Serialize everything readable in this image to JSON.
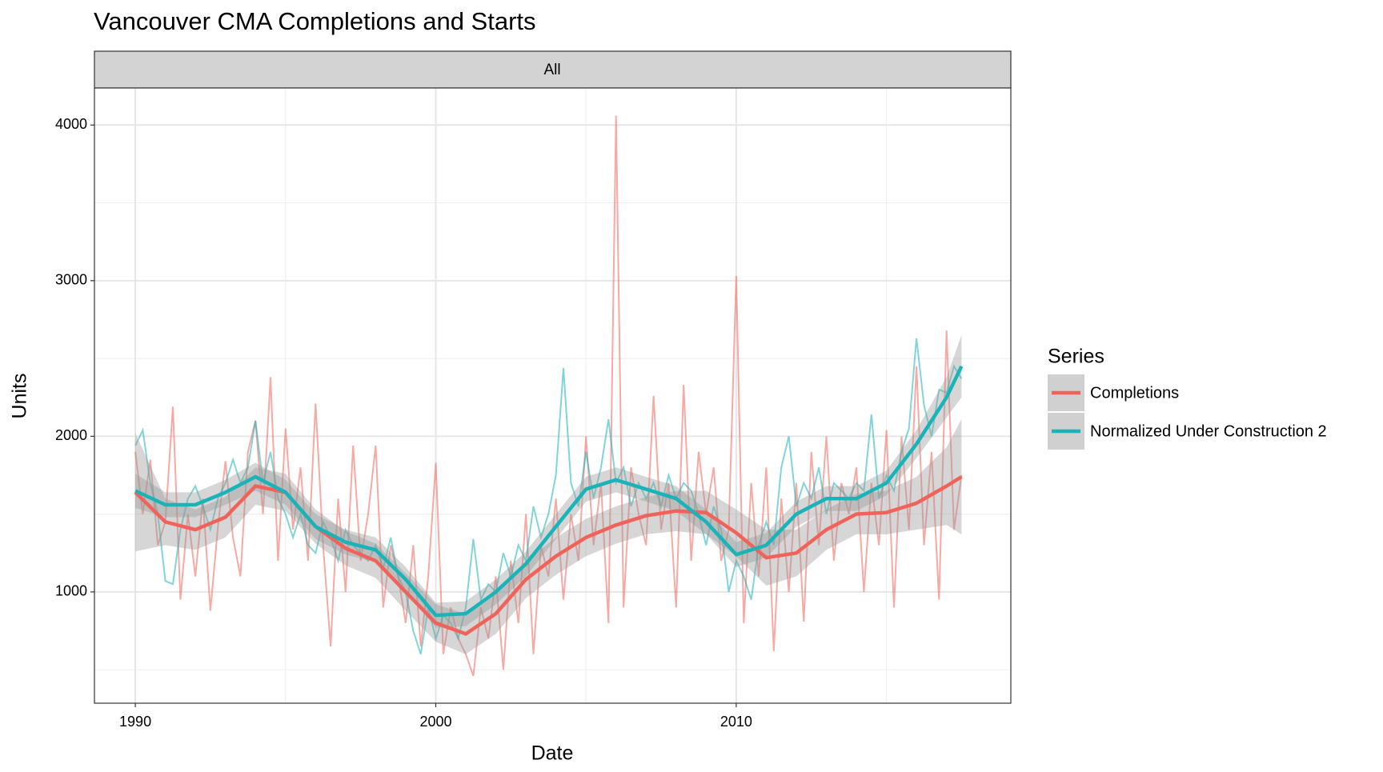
{
  "chart_data": {
    "type": "line",
    "title": "Vancouver CMA Completions and Starts",
    "facet": "All",
    "x_label": "Date",
    "y_label": "Units",
    "legend_title": "Series",
    "legend": "right",
    "grid": true,
    "xlim": [
      1988.64,
      2019.14
    ],
    "ylim": [
      285,
      4238
    ],
    "xticks": [
      1990,
      2000,
      2010
    ],
    "xminor": [
      1995,
      2005,
      2015
    ],
    "yticks": [
      1000,
      2000,
      3000,
      4000
    ],
    "yminor": [
      500,
      1500,
      2500,
      3500
    ],
    "x": [
      1990,
      1990.25,
      1990.5,
      1990.75,
      1991,
      1991.25,
      1991.5,
      1991.75,
      1992,
      1992.25,
      1992.5,
      1992.75,
      1993,
      1993.25,
      1993.5,
      1993.75,
      1994,
      1994.25,
      1994.5,
      1994.75,
      1995,
      1995.25,
      1995.5,
      1995.75,
      1996,
      1996.25,
      1996.5,
      1996.75,
      1997,
      1997.25,
      1997.5,
      1997.75,
      1998,
      1998.25,
      1998.5,
      1998.75,
      1999,
      1999.25,
      1999.5,
      1999.75,
      2000,
      2000.25,
      2000.5,
      2000.75,
      2001,
      2001.25,
      2001.5,
      2001.75,
      2002,
      2002.25,
      2002.5,
      2002.75,
      2003,
      2003.25,
      2003.5,
      2003.75,
      2004,
      2004.25,
      2004.5,
      2004.75,
      2005,
      2005.25,
      2005.5,
      2005.75,
      2006,
      2006.25,
      2006.5,
      2006.75,
      2007,
      2007.25,
      2007.5,
      2007.75,
      2008,
      2008.25,
      2008.5,
      2008.75,
      2009,
      2009.25,
      2009.5,
      2009.75,
      2010,
      2010.25,
      2010.5,
      2010.75,
      2011,
      2011.25,
      2011.5,
      2011.75,
      2012,
      2012.25,
      2012.5,
      2012.75,
      2013,
      2013.25,
      2013.5,
      2013.75,
      2014,
      2014.25,
      2014.5,
      2014.75,
      2015,
      2015.25,
      2015.5,
      2015.75,
      2016,
      2016.25,
      2016.5,
      2016.75,
      2017,
      2017.25,
      2017.5
    ],
    "smooth_x": [
      1990,
      1991,
      1992,
      1993,
      1994,
      1995,
      1996,
      1997,
      1998,
      1999,
      2000,
      2001,
      2002,
      2003,
      2004,
      2005,
      2006,
      2007,
      2008,
      2009,
      2010,
      2011,
      2012,
      2013,
      2014,
      2015,
      2016,
      2017,
      2017.5
    ],
    "series": [
      {
        "name": "Completions",
        "color": "#f0635a",
        "values": [
          1900,
          1500,
          1850,
          1300,
          1450,
          2190,
          950,
          1500,
          1100,
          1600,
          880,
          1420,
          1840,
          1350,
          1100,
          1900,
          2100,
          1500,
          2380,
          1200,
          2050,
          1400,
          1800,
          1200,
          2210,
          1300,
          650,
          1600,
          1000,
          1940,
          1200,
          1500,
          1940,
          900,
          1300,
          1100,
          800,
          1300,
          650,
          1100,
          1830,
          600,
          900,
          700,
          600,
          460,
          900,
          700,
          1100,
          500,
          1200,
          800,
          1500,
          600,
          1300,
          1100,
          1600,
          950,
          1500,
          1200,
          2000,
          1300,
          1700,
          800,
          4060,
          900,
          1800,
          1500,
          1300,
          2260,
          1400,
          1700,
          900,
          2330,
          1200,
          1900,
          1500,
          1800,
          1200,
          1400,
          3030,
          800,
          1700,
          1100,
          1800,
          620,
          1600,
          1000,
          1700,
          810,
          1900,
          1300,
          2000,
          1200,
          1700,
          1500,
          1800,
          1000,
          1700,
          1300,
          2040,
          900,
          2000,
          1400,
          2450,
          1300,
          1900,
          950,
          2680,
          1400,
          1750
        ],
        "smooth": [
          1640,
          1450,
          1400,
          1480,
          1680,
          1640,
          1420,
          1280,
          1200,
          1000,
          800,
          730,
          860,
          1080,
          1230,
          1350,
          1430,
          1490,
          1520,
          1510,
          1380,
          1220,
          1250,
          1400,
          1500,
          1510,
          1570,
          1680,
          1740
        ],
        "lower": [
          1260,
          1300,
          1270,
          1350,
          1560,
          1520,
          1310,
          1170,
          1090,
          880,
          680,
          600,
          730,
          960,
          1110,
          1230,
          1310,
          1370,
          1390,
          1370,
          1230,
          1040,
          1100,
          1270,
          1370,
          1370,
          1400,
          1430,
          1370
        ],
        "upper": [
          2020,
          1600,
          1530,
          1610,
          1800,
          1760,
          1530,
          1390,
          1310,
          1120,
          920,
          860,
          990,
          1200,
          1350,
          1470,
          1550,
          1610,
          1650,
          1650,
          1530,
          1400,
          1400,
          1530,
          1630,
          1650,
          1740,
          1930,
          2110
        ]
      },
      {
        "name": "Normalized Under Construction 2",
        "color": "#1ab3b8",
        "values": [
          1940,
          2040,
          1700,
          1500,
          1070,
          1050,
          1400,
          1600,
          1680,
          1550,
          1400,
          1600,
          1700,
          1850,
          1700,
          1800,
          2100,
          1700,
          1900,
          1600,
          1500,
          1350,
          1500,
          1300,
          1250,
          1450,
          1350,
          1200,
          1400,
          1300,
          1250,
          1200,
          1300,
          1150,
          1350,
          1100,
          1000,
          750,
          600,
          900,
          700,
          850,
          800,
          700,
          900,
          1340,
          950,
          1050,
          1000,
          1250,
          1100,
          1300,
          1200,
          1550,
          1350,
          1500,
          1750,
          2440,
          1700,
          1550,
          1900,
          1600,
          1800,
          2110,
          1700,
          1800,
          1550,
          1700,
          1600,
          1700,
          1550,
          1750,
          1600,
          1700,
          1650,
          1500,
          1300,
          1550,
          1400,
          1000,
          1200,
          1100,
          950,
          1300,
          1450,
          1300,
          1800,
          2000,
          1550,
          1700,
          1600,
          1800,
          1500,
          1700,
          1650,
          1600,
          1700,
          1650,
          2140,
          1600,
          1750,
          1650,
          1900,
          2050,
          2630,
          2200,
          2000,
          2300,
          2280,
          2450,
          2370
        ],
        "smooth": [
          1650,
          1560,
          1560,
          1640,
          1740,
          1640,
          1420,
          1320,
          1270,
          1080,
          850,
          860,
          1000,
          1180,
          1420,
          1660,
          1720,
          1660,
          1600,
          1450,
          1240,
          1300,
          1500,
          1600,
          1600,
          1700,
          1950,
          2250,
          2450
        ],
        "lower": [
          1540,
          1480,
          1480,
          1560,
          1650,
          1560,
          1340,
          1240,
          1190,
          1000,
          770,
          780,
          920,
          1100,
          1340,
          1580,
          1640,
          1580,
          1520,
          1370,
          1160,
          1220,
          1420,
          1520,
          1520,
          1620,
          1860,
          2120,
          2250
        ],
        "upper": [
          1760,
          1640,
          1640,
          1720,
          1830,
          1720,
          1500,
          1400,
          1350,
          1160,
          930,
          940,
          1080,
          1260,
          1500,
          1740,
          1800,
          1740,
          1680,
          1530,
          1320,
          1380,
          1580,
          1680,
          1680,
          1780,
          2040,
          2380,
          2650
        ]
      }
    ]
  }
}
